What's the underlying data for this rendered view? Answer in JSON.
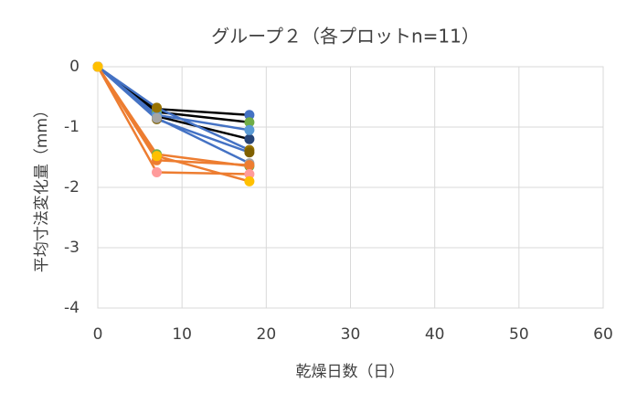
{
  "chart_data": {
    "type": "line",
    "title": "グループ２（各プロットn=11）",
    "x_label": "乾燥日数（日）",
    "y_label": "平均寸法変化量（mm）",
    "x": [
      0,
      7,
      18
    ],
    "xlim": [
      0,
      60
    ],
    "xticks": [
      0,
      10,
      20,
      30,
      40,
      50,
      60
    ],
    "ylim": [
      -4,
      0
    ],
    "yticks": [
      0,
      -1,
      -2,
      -3,
      -4
    ],
    "grid": true,
    "series": [
      {
        "color": "#000000",
        "marker_color": "#4472c4",
        "values": [
          0,
          -0.7,
          -0.8
        ]
      },
      {
        "color": "#000000",
        "marker_color": "#70ad47",
        "values": [
          0,
          -0.75,
          -0.92
        ]
      },
      {
        "color": "#000000",
        "marker_color": "#264478",
        "values": [
          0,
          -0.82,
          -1.2
        ]
      },
      {
        "color": "#4472c4",
        "marker_color": "#5b9bd5",
        "values": [
          0,
          -0.8,
          -1.05
        ]
      },
      {
        "color": "#4472c4",
        "marker_color": "#997300",
        "values": [
          0,
          -0.68,
          -1.38
        ]
      },
      {
        "color": "#4472c4",
        "marker_color": "#7f6000",
        "values": [
          0,
          -0.87,
          -1.42
        ]
      },
      {
        "color": "#4472c4",
        "marker_color": "#a5a5a5",
        "values": [
          0,
          -0.85,
          -1.6
        ]
      },
      {
        "color": "#ed7d31",
        "marker_color": "#70ad47",
        "values": [
          0,
          -1.45,
          -1.65
        ]
      },
      {
        "color": "#ed7d31",
        "marker_color": "#ed7d31",
        "values": [
          0,
          -1.55,
          -1.63
        ]
      },
      {
        "color": "#ed7d31",
        "marker_color": "#ff9b9b",
        "values": [
          0,
          -1.75,
          -1.78
        ]
      },
      {
        "color": "#ed7d31",
        "marker_color": "#ffc000",
        "values": [
          0,
          -1.48,
          -1.9
        ]
      }
    ]
  }
}
